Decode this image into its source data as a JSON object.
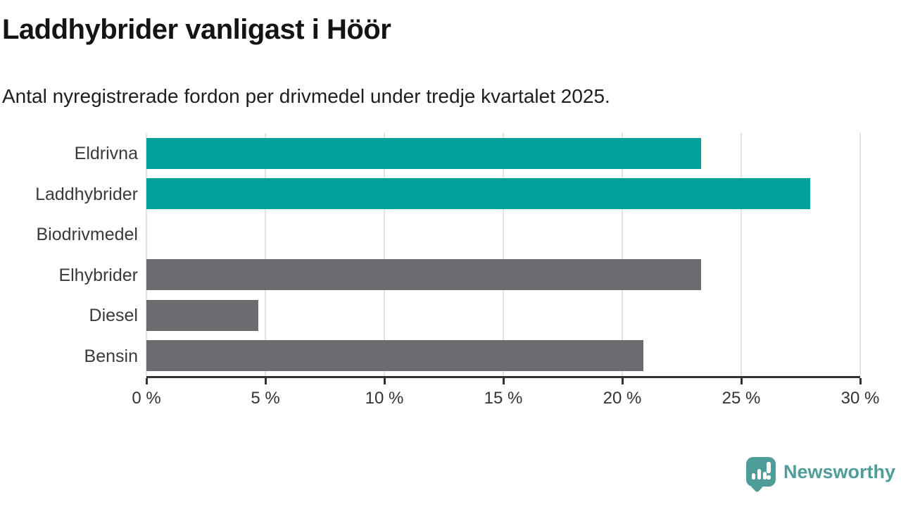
{
  "header": {
    "title": "Laddhybrider vanligast i Höör",
    "subtitle": "Antal nyregistrerade fordon per drivmedel under tredje kvartalet 2025."
  },
  "chart_data": {
    "type": "bar",
    "orientation": "horizontal",
    "title": "Laddhybrider vanligast i Höör",
    "subtitle": "Antal nyregistrerade fordon per drivmedel under tredje kvartalet 2025.",
    "categories": [
      "Eldrivna",
      "Laddhybrider",
      "Biodrivmedel",
      "Elhybrider",
      "Diesel",
      "Bensin"
    ],
    "values": [
      23.3,
      27.9,
      0,
      23.3,
      4.7,
      20.9
    ],
    "unit": "%",
    "bar_colors": [
      "#00A09B",
      "#00A09B",
      "#6C6B70",
      "#6C6B70",
      "#6C6B70",
      "#6C6B70"
    ],
    "highlight_color": "#00A09B",
    "default_color": "#6C6B70",
    "xlim": [
      0,
      30
    ],
    "xticks": [
      0,
      5,
      10,
      15,
      20,
      25,
      30
    ],
    "xtick_suffix": " %",
    "grid": true,
    "gridline_color": "#E3E3E3",
    "axis_color": "#333333",
    "legend": "none"
  },
  "branding": {
    "name": "Newsworthy",
    "color": "#4E9D98"
  }
}
